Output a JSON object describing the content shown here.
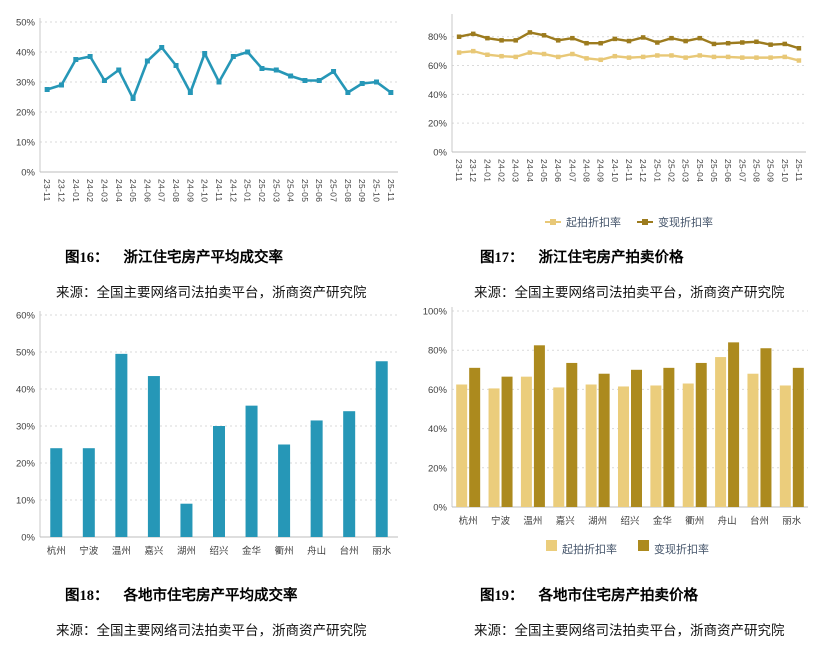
{
  "page": {
    "background": "#ffffff"
  },
  "figures": [
    {
      "id": "fig16",
      "caption_label": "图16：",
      "caption_title": "浙江住宅房产平均成交率",
      "source": "来源：全国主要网络司法拍卖平台，浙商资产研究院"
    },
    {
      "id": "fig17",
      "caption_label": "图17：",
      "caption_title": "浙江住宅房产拍卖价格",
      "source": "来源：全国主要网络司法拍卖平台，浙商资产研究院"
    },
    {
      "id": "fig18",
      "caption_label": "图18：",
      "caption_title": "各地市住宅房产平均成交率",
      "source": "来源：全国主要网络司法拍卖平台，浙商资产研究院"
    },
    {
      "id": "fig19",
      "caption_label": "图19：",
      "caption_title": "各地市住宅房产拍卖价格",
      "source": "来源：全国主要网络司法拍卖平台，浙商资产研究院"
    }
  ],
  "chart_data": [
    {
      "id": "fig16",
      "type": "line",
      "title": "浙江住宅房产平均成交率",
      "categories": [
        "23-11",
        "23-12",
        "24-01",
        "24-02",
        "24-03",
        "24-04",
        "24-05",
        "24-06",
        "24-07",
        "24-08",
        "24-09",
        "24-10",
        "24-11",
        "24-12",
        "25-01",
        "25-02",
        "25-03",
        "25-04",
        "25-05",
        "25-06",
        "25-07",
        "25-08",
        "25-09",
        "25-10",
        "25-11"
      ],
      "series": [
        {
          "color": "#2697B7",
          "values": [
            27.5,
            29,
            37.5,
            38.5,
            30.5,
            34,
            24.5,
            37,
            41.5,
            35.5,
            26.5,
            39.5,
            30,
            38.5,
            40,
            34.5,
            34,
            32,
            30.5,
            30.5,
            33.5,
            26.5,
            29.5,
            30,
            26.5
          ]
        }
      ],
      "ylim": [
        0,
        50
      ],
      "yticks": [
        0,
        10,
        20,
        30,
        40,
        50
      ],
      "grid": "dashed-horizontal",
      "legend": false
    },
    {
      "id": "fig17",
      "type": "line",
      "title": "浙江住宅房产拍卖价格",
      "categories": [
        "23-11",
        "23-12",
        "24-01",
        "24-02",
        "24-03",
        "24-04",
        "24-05",
        "24-06",
        "24-07",
        "24-08",
        "24-09",
        "24-10",
        "24-11",
        "24-12",
        "25-01",
        "25-02",
        "25-03",
        "25-04",
        "25-05",
        "25-06",
        "25-07",
        "25-08",
        "25-09",
        "25-10",
        "25-11"
      ],
      "series": [
        {
          "name": "起拍折扣率",
          "color": "#E8C877",
          "values": [
            69,
            70,
            67.5,
            66.5,
            66,
            69,
            68,
            66,
            68,
            65,
            64,
            66.5,
            65.5,
            66,
            67,
            67,
            65.5,
            67,
            66,
            66,
            65.5,
            65.5,
            65.5,
            66,
            63.5
          ]
        },
        {
          "name": "变现折扣率",
          "color": "#9C7B1E",
          "values": [
            80,
            82,
            79,
            77.5,
            77.5,
            83,
            81,
            77.5,
            79,
            75.5,
            75.5,
            78.5,
            77,
            79.5,
            76,
            79,
            77,
            79,
            75,
            75.5,
            76,
            76.5,
            74.5,
            75,
            72
          ]
        }
      ],
      "ylim": [
        0,
        80
      ],
      "yticks": [
        0,
        20,
        40,
        60,
        80
      ],
      "grid": "dashed-horizontal",
      "legend": true,
      "legend_position": "bottom"
    },
    {
      "id": "fig18",
      "type": "bar",
      "title": "各地市住宅房产平均成交率",
      "categories": [
        "杭州",
        "宁波",
        "温州",
        "嘉兴",
        "湖州",
        "绍兴",
        "金华",
        "衢州",
        "舟山",
        "台州",
        "丽水"
      ],
      "series": [
        {
          "color": "#2697B7",
          "values": [
            24,
            24,
            49.5,
            43.5,
            9,
            30,
            35.5,
            25,
            31.5,
            34,
            47.5
          ]
        }
      ],
      "ylim": [
        0,
        60
      ],
      "yticks": [
        0,
        10,
        20,
        30,
        40,
        50,
        60
      ],
      "grid": "dashed-horizontal",
      "legend": false
    },
    {
      "id": "fig19",
      "type": "bar",
      "title": "各地市住宅房产拍卖价格",
      "categories": [
        "杭州",
        "宁波",
        "温州",
        "嘉兴",
        "湖州",
        "绍兴",
        "金华",
        "衢州",
        "舟山",
        "台州",
        "丽水"
      ],
      "series": [
        {
          "name": "起拍折扣率",
          "color": "#EBCD7C",
          "values": [
            62.5,
            60.5,
            66.5,
            61,
            62.5,
            61.5,
            62,
            63,
            76.5,
            68,
            62
          ]
        },
        {
          "name": "变现折扣率",
          "color": "#AC8A1E",
          "values": [
            71,
            66.5,
            82.5,
            73.5,
            68,
            70,
            71,
            73.5,
            84,
            81,
            71
          ]
        }
      ],
      "ylim": [
        0,
        100
      ],
      "yticks": [
        0,
        20,
        40,
        60,
        80,
        100
      ],
      "grid": "dashed-horizontal",
      "legend": true,
      "legend_position": "bottom"
    }
  ],
  "legend_labels": {
    "qipai": "起拍折扣率",
    "bianxian": "变现折扣率"
  }
}
